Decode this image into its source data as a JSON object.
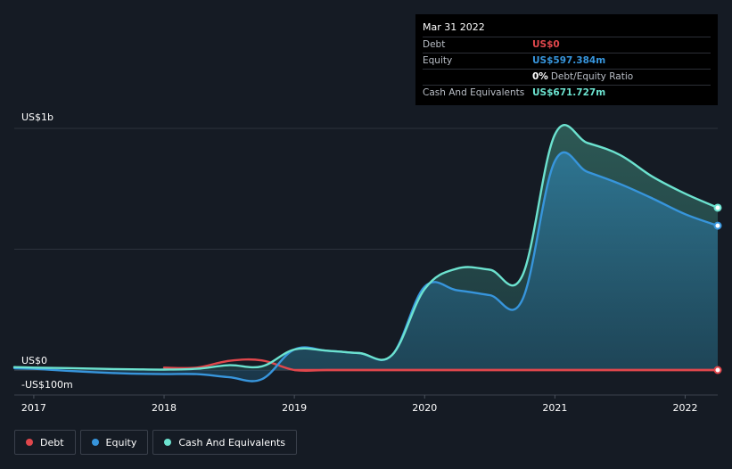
{
  "tooltip": {
    "date": "Mar 31 2022",
    "rows": {
      "debt": {
        "label": "Debt",
        "value": "US$0"
      },
      "equity": {
        "label": "Equity",
        "value": "US$597.384m"
      },
      "ratio": {
        "value": "0%",
        "label": "Debt/Equity Ratio"
      },
      "cash": {
        "label": "Cash And Equivalents",
        "value": "US$671.727m"
      }
    }
  },
  "legend": [
    {
      "label": "Debt",
      "color": "#e0474c"
    },
    {
      "label": "Equity",
      "color": "#3795dc"
    },
    {
      "label": "Cash And Equivalents",
      "color": "#6ce2cf"
    }
  ],
  "colors": {
    "debt": "#e0474c",
    "equity": "#3795dc",
    "cash": "#6ce2cf",
    "background": "#151b24",
    "grid": "#2d333d"
  },
  "chart_data": {
    "type": "area",
    "x_range": [
      2016.85,
      2022.25
    ],
    "ylim": [
      -100,
      1000
    ],
    "y_axis_labels": [
      {
        "value": 1000,
        "text": "US$1b"
      },
      {
        "value": 0,
        "text": "US$0"
      },
      {
        "value": -100,
        "text": "-US$100m"
      }
    ],
    "x_ticks": [
      {
        "value": 2017,
        "text": "2017"
      },
      {
        "value": 2018,
        "text": "2018"
      },
      {
        "value": 2019,
        "text": "2019"
      },
      {
        "value": 2020,
        "text": "2020"
      },
      {
        "value": 2021,
        "text": "2021"
      },
      {
        "value": 2022,
        "text": "2022"
      }
    ],
    "grid": true,
    "legend_position": "bottom-left",
    "series": [
      {
        "name": "Debt",
        "key": "debt",
        "color": "#e0474c",
        "x": [
          2018.0,
          2018.25,
          2018.5,
          2018.75,
          2019.0,
          2019.25,
          2019.5,
          2019.75,
          2020.0,
          2020.25,
          2020.5,
          2020.75,
          2021.0,
          2021.25,
          2021.5,
          2021.75,
          2022.0,
          2022.25
        ],
        "y": [
          10,
          10,
          38,
          40,
          0,
          0,
          0,
          0,
          0,
          0,
          0,
          0,
          0,
          0,
          0,
          0,
          0,
          0
        ]
      },
      {
        "name": "Equity",
        "key": "equity",
        "color": "#3795dc",
        "x": [
          2016.85,
          2017.0,
          2017.25,
          2017.5,
          2017.75,
          2018.0,
          2018.25,
          2018.5,
          2018.75,
          2019.0,
          2019.25,
          2019.5,
          2019.75,
          2020.0,
          2020.25,
          2020.5,
          2020.75,
          2021.0,
          2021.25,
          2021.5,
          2021.75,
          2022.0,
          2022.25
        ],
        "y": [
          8,
          5,
          -3,
          -10,
          -15,
          -17,
          -17,
          -30,
          -38,
          85,
          80,
          70,
          62,
          345,
          330,
          310,
          290,
          865,
          820,
          770,
          710,
          645,
          597.384
        ]
      },
      {
        "name": "Cash And Equivalents",
        "key": "cash",
        "color": "#6ce2cf",
        "x": [
          2016.85,
          2017.0,
          2017.25,
          2017.5,
          2017.75,
          2018.0,
          2018.25,
          2018.5,
          2018.75,
          2019.0,
          2019.25,
          2019.5,
          2019.75,
          2020.0,
          2020.25,
          2020.5,
          2020.75,
          2021.0,
          2021.25,
          2021.5,
          2021.75,
          2022.0,
          2022.25
        ],
        "y": [
          12,
          10,
          8,
          5,
          3,
          2,
          5,
          20,
          15,
          85,
          80,
          70,
          62,
          335,
          420,
          415,
          390,
          975,
          940,
          890,
          800,
          730,
          671.727
        ]
      }
    ]
  }
}
